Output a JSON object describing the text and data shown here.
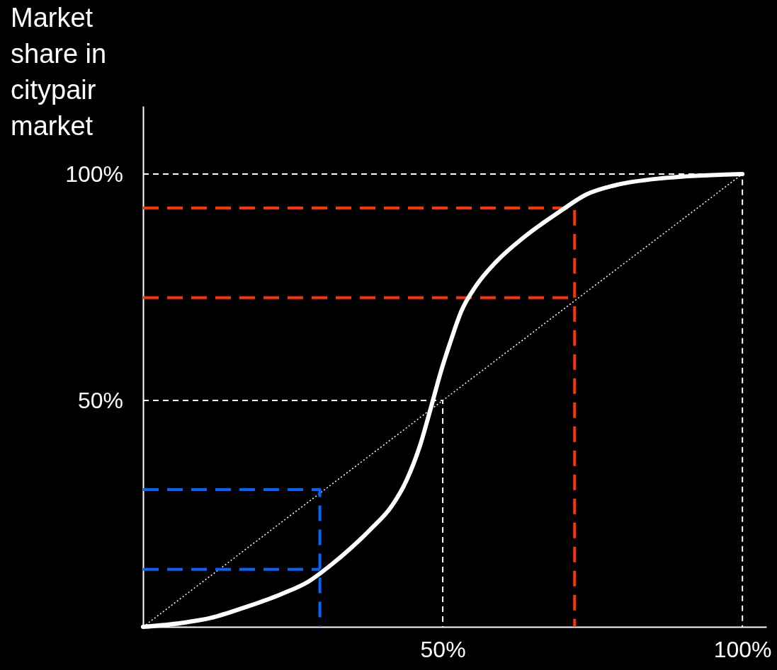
{
  "chart_data": {
    "type": "line",
    "ylabel": "Market share in citypair market",
    "xlim": [
      0,
      104
    ],
    "ylim": [
      0,
      115
    ],
    "xticks": [
      {
        "value": 50,
        "label": "50%"
      },
      {
        "value": 100,
        "label": "100%"
      }
    ],
    "yticks": [
      {
        "value": 50,
        "label": "50%"
      },
      {
        "value": 100,
        "label": "100%"
      }
    ],
    "grid": false,
    "series": [
      {
        "color": "#ffffff",
        "line_style": "dashed",
        "x": [
          0,
          50,
          50
        ],
        "values": [
          50,
          50,
          0
        ]
      },
      {
        "color": "#ffffff",
        "line_style": "dashed",
        "x": [
          0,
          100,
          100
        ],
        "values": [
          100,
          100,
          0
        ]
      },
      {
        "color": "#ffffff",
        "line_style": "dotted",
        "x": [
          0,
          100
        ],
        "values": [
          0,
          100
        ]
      },
      {
        "color": "#ff3300",
        "line_style": "dashed",
        "x": [
          0,
          72,
          72
        ],
        "values": [
          92.5,
          92.5,
          0
        ]
      },
      {
        "color": "#ff3300",
        "line_style": "dashed",
        "x": [
          0,
          72
        ],
        "values": [
          72.7,
          72.7
        ]
      },
      {
        "color": "#0066ff",
        "line_style": "dashed",
        "x": [
          0,
          29.5,
          29.5
        ],
        "values": [
          30.3,
          30.3,
          0
        ]
      },
      {
        "color": "#0066ff",
        "line_style": "dashed",
        "x": [
          0,
          29.5
        ],
        "values": [
          12.7,
          12.7
        ]
      },
      {
        "color": "#ffffff",
        "line_style": "solid",
        "x": [
          0,
          6.7,
          11.4,
          17.2,
          23,
          27.6,
          31.1,
          34.6,
          38,
          41.5,
          43.9,
          46.2,
          47.9,
          49.7,
          51.4,
          53.1,
          55.5,
          58.9,
          63.6,
          69.4,
          74,
          78.7,
          86.8,
          100
        ],
        "values": [
          0,
          0.9,
          2,
          4.4,
          7.2,
          10,
          13.4,
          17.3,
          21.6,
          26.7,
          32.2,
          40,
          47.8,
          56.4,
          63.4,
          69.7,
          75.2,
          80.6,
          86.1,
          91.6,
          95.5,
          97.5,
          99.1,
          100
        ]
      }
    ]
  }
}
